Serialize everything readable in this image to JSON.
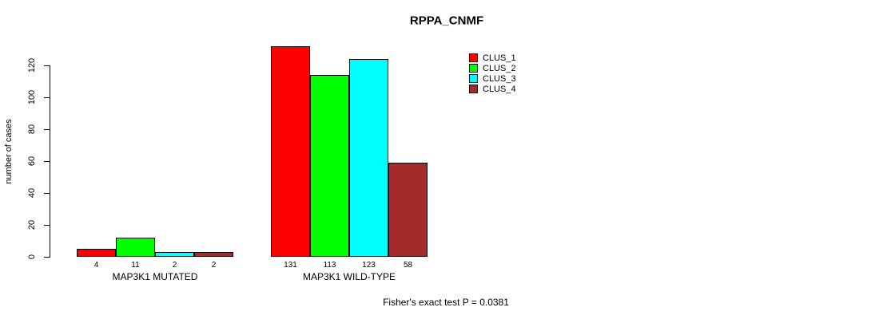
{
  "title": "RPPA_CNMF",
  "y_axis": {
    "label": "number of cases",
    "ticks": [
      0,
      20,
      40,
      60,
      80,
      100,
      120
    ]
  },
  "legend": {
    "items": [
      {
        "label": "CLUS_1",
        "color": "#ff0000"
      },
      {
        "label": "CLUS_2",
        "color": "#00ff00"
      },
      {
        "label": "CLUS_3",
        "color": "#00ffff"
      },
      {
        "label": "CLUS_4",
        "color": "#a52a2a"
      }
    ]
  },
  "footer": "Fisher's exact test P = 0.0381",
  "chart_data": {
    "type": "bar",
    "title": "RPPA_CNMF",
    "ylabel": "number of cases",
    "xlabel": "",
    "ylim": [
      0,
      131
    ],
    "yticks": [
      0,
      20,
      40,
      60,
      80,
      100,
      120
    ],
    "grid": false,
    "legend_position": "top-right",
    "bar_value_labels": true,
    "categories": [
      "MAP3K1 MUTATED",
      "MAP3K1 WILD-TYPE"
    ],
    "series": [
      {
        "name": "CLUS_1",
        "color": "#ff0000",
        "values": [
          4,
          131
        ]
      },
      {
        "name": "CLUS_2",
        "color": "#00ff00",
        "values": [
          11,
          113
        ]
      },
      {
        "name": "CLUS_3",
        "color": "#00ffff",
        "values": [
          2,
          123
        ]
      },
      {
        "name": "CLUS_4",
        "color": "#a52a2a",
        "values": [
          2,
          58
        ]
      }
    ],
    "annotation": "Fisher's exact test P = 0.0381"
  }
}
